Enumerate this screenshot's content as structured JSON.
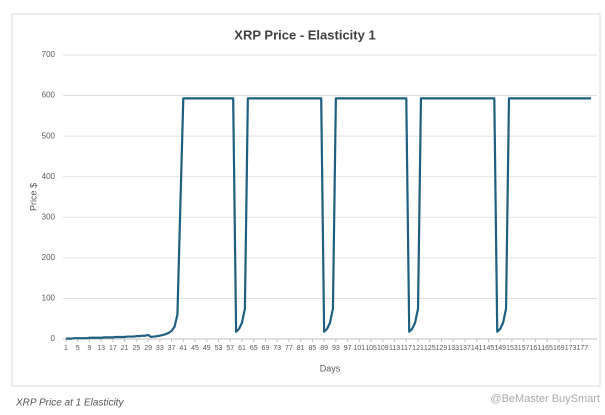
{
  "chart_data": {
    "type": "line",
    "title": "XRP Price - Elasticity 1",
    "x_label": "Days",
    "y_label": "Price $",
    "color": "#1f5f7f",
    "grid": true,
    "x": [
      1,
      2,
      3,
      4,
      5,
      6,
      7,
      8,
      9,
      10,
      11,
      12,
      13,
      14,
      15,
      16,
      17,
      18,
      19,
      20,
      21,
      22,
      23,
      24,
      25,
      26,
      27,
      28,
      29,
      30,
      31,
      32,
      33,
      34,
      35,
      36,
      37,
      38,
      39,
      40,
      41,
      42,
      43,
      44,
      45,
      46,
      47,
      48,
      49,
      50,
      51,
      52,
      53,
      54,
      55,
      56,
      57,
      58,
      59,
      60,
      61,
      62,
      63,
      64,
      65,
      66,
      67,
      68,
      69,
      70,
      71,
      72,
      73,
      74,
      75,
      76,
      77,
      78,
      79,
      80,
      81,
      82,
      83,
      84,
      85,
      86,
      87,
      88,
      89,
      90,
      91,
      92,
      93,
      94,
      95,
      96,
      97,
      98,
      99,
      100,
      101,
      102,
      103,
      104,
      105,
      106,
      107,
      108,
      109,
      110,
      111,
      112,
      113,
      114,
      115,
      116,
      117,
      118,
      119,
      120,
      121,
      122,
      123,
      124,
      125,
      126,
      127,
      128,
      129,
      130,
      131,
      132,
      133,
      134,
      135,
      136,
      137,
      138,
      139,
      140,
      141,
      142,
      143,
      144,
      145,
      146,
      147,
      148,
      149,
      150,
      151,
      152,
      153,
      154,
      155,
      156,
      157,
      158,
      159,
      160,
      161,
      162,
      163,
      164,
      165,
      166,
      167,
      168,
      169,
      170,
      171,
      172,
      173,
      174,
      175,
      176,
      177,
      178,
      179,
      180
    ],
    "values": [
      1,
      1,
      1,
      2,
      2,
      2,
      2,
      2,
      3,
      3,
      3,
      3,
      3,
      4,
      4,
      4,
      4,
      5,
      5,
      5,
      5,
      6,
      6,
      6,
      7,
      7,
      8,
      8,
      10,
      5,
      6,
      7,
      8,
      10,
      12,
      15,
      20,
      30,
      60,
      330,
      593,
      593,
      593,
      593,
      593,
      593,
      593,
      593,
      593,
      593,
      593,
      593,
      593,
      593,
      593,
      593,
      593,
      593,
      18,
      25,
      40,
      75,
      593,
      593,
      593,
      593,
      593,
      593,
      593,
      593,
      593,
      593,
      593,
      593,
      593,
      593,
      593,
      593,
      593,
      593,
      593,
      593,
      593,
      593,
      593,
      593,
      593,
      593,
      18,
      25,
      40,
      75,
      593,
      593,
      593,
      593,
      593,
      593,
      593,
      593,
      593,
      593,
      593,
      593,
      593,
      593,
      593,
      593,
      593,
      593,
      593,
      593,
      593,
      593,
      593,
      593,
      593,
      18,
      25,
      40,
      75,
      593,
      593,
      593,
      593,
      593,
      593,
      593,
      593,
      593,
      593,
      593,
      593,
      593,
      593,
      593,
      593,
      593,
      593,
      593,
      593,
      593,
      593,
      593,
      593,
      593,
      593,
      18,
      25,
      40,
      75,
      593,
      593,
      593,
      593,
      593,
      593,
      593,
      593,
      593,
      593,
      593,
      593,
      593,
      593,
      593,
      593,
      593,
      593,
      593,
      593,
      593,
      593,
      593,
      593,
      593,
      593,
      593,
      593,
      593
    ],
    "xlim": [
      0,
      182
    ],
    "xticks": [
      1,
      5,
      9,
      13,
      17,
      21,
      25,
      29,
      33,
      37,
      41,
      45,
      49,
      53,
      57,
      61,
      65,
      69,
      73,
      77,
      81,
      85,
      89,
      93,
      97,
      101,
      105,
      109,
      113,
      117,
      121,
      125,
      129,
      133,
      137,
      141,
      145,
      149,
      153,
      157,
      161,
      165,
      169,
      173,
      177
    ],
    "ylim": [
      0,
      700
    ],
    "yticks": [
      0,
      100,
      200,
      300,
      400,
      500,
      600,
      700
    ]
  },
  "caption": "XRP Price at 1 Elasticity",
  "watermark": "@BeMaster BuySmart"
}
